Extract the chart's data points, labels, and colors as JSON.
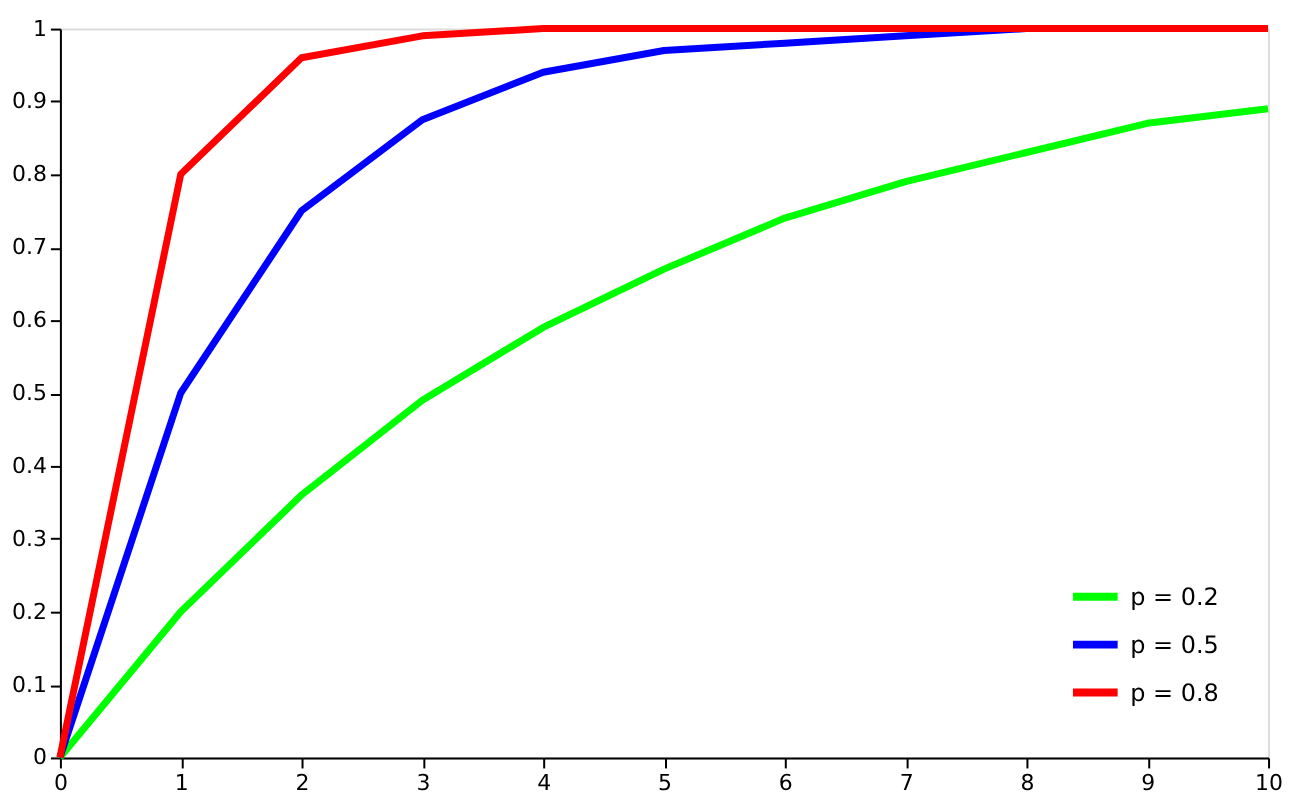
{
  "chart_data": {
    "type": "line",
    "x": [
      0,
      1,
      2,
      3,
      4,
      5,
      6,
      7,
      8,
      9,
      10
    ],
    "series": [
      {
        "name": "p = 0.2",
        "color": "#00ff00",
        "values": [
          0,
          0.2,
          0.36,
          0.49,
          0.59,
          0.67,
          0.74,
          0.79,
          0.83,
          0.87,
          0.89
        ]
      },
      {
        "name": "p = 0.5",
        "color": "#0000ff",
        "values": [
          0,
          0.5,
          0.75,
          0.875,
          0.94,
          0.97,
          0.98,
          0.99,
          1.0,
          null,
          null
        ]
      },
      {
        "name": "p = 0.8",
        "color": "#ff0000",
        "values": [
          0,
          0.8,
          0.96,
          0.99,
          1.0,
          1.0,
          1.0,
          1.0,
          1.0,
          1.0,
          1.0
        ]
      }
    ],
    "xlim": [
      0,
      10
    ],
    "xticks": [
      0,
      1,
      2,
      3,
      4,
      5,
      6,
      7,
      8,
      9,
      10
    ],
    "ylim": [
      0,
      1
    ],
    "yticks": [
      0,
      0.1,
      0.2,
      0.3,
      0.4,
      0.5,
      0.6,
      0.7,
      0.8,
      0.9,
      1
    ],
    "grid": false,
    "legend": "bottom right",
    "marker": "none",
    "line_style": "solid"
  }
}
